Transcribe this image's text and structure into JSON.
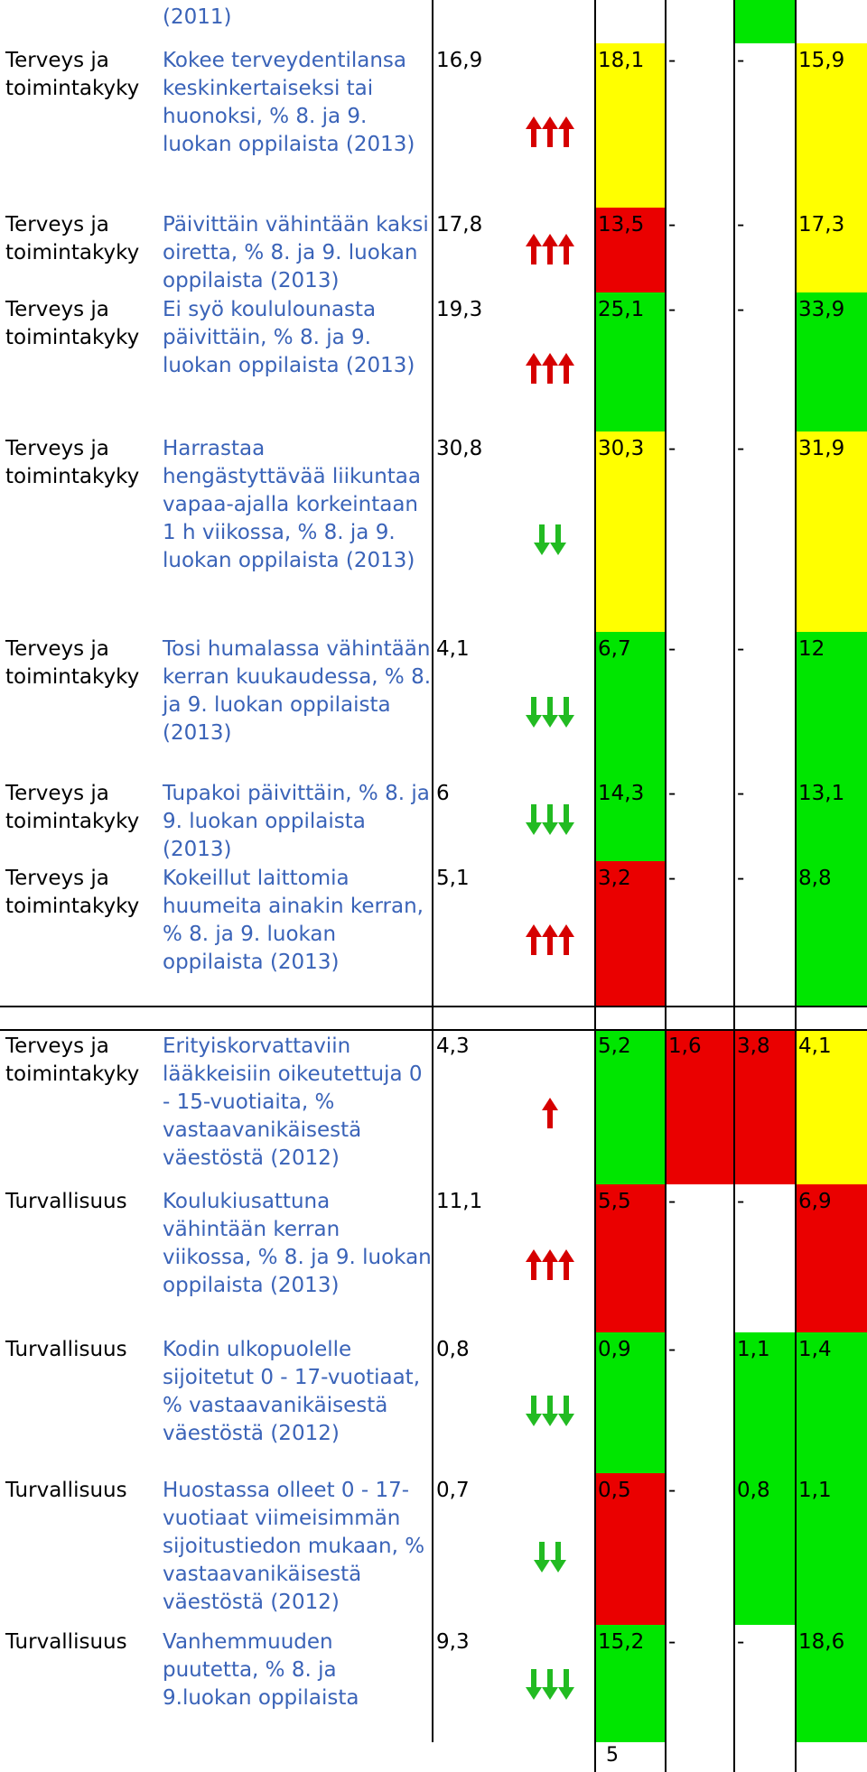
{
  "colors": {
    "red": "#ea0000",
    "yellow": "#ffff00",
    "green": "#00e600",
    "link": "#3a63b8",
    "arrow_up": "#d60000",
    "arrow_down": "#22bb22"
  },
  "top_fragment": {
    "desc": "(2011)"
  },
  "rows": [
    {
      "category": "Terveys ja toimintakyky",
      "description": "Kokee terveydentilansa keskinkertaiseksi tai huonoksi, % 8. ja 9. luokan oppilaista (2013)",
      "value": "16,9",
      "trend": "up3",
      "c1": "18,1",
      "c1_color": "yellow",
      "c2": "-",
      "c2_color": "white",
      "c3": "-",
      "c3_color": "white",
      "c4": "15,9",
      "c4_color": "yellow"
    },
    {
      "category": "Terveys ja toimintakyky",
      "description": "Päivittäin vähintään kaksi oiretta, % 8. ja 9. luokan oppilaista (2013)",
      "value": "17,8",
      "trend": "up3",
      "c1": "13,5",
      "c1_color": "red",
      "c2": "-",
      "c2_color": "white",
      "c3": "-",
      "c3_color": "white",
      "c4": "17,3",
      "c4_color": "yellow"
    },
    {
      "category": "Terveys ja toimintakyky",
      "description": "Ei syö koululounasta päivittäin, % 8. ja 9. luokan oppilaista (2013)",
      "value": "19,3",
      "trend": "up3",
      "c1": "25,1",
      "c1_color": "green",
      "c2": "-",
      "c2_color": "white",
      "c3": "-",
      "c3_color": "white",
      "c4": "33,9",
      "c4_color": "green"
    },
    {
      "category": "Terveys ja toimintakyky",
      "description": "Harrastaa hengästyttävää liikuntaa vapaa-ajalla korkeintaan 1 h viikossa, % 8. ja 9. luokan oppilaista (2013)",
      "value": "30,8",
      "trend": "down2",
      "c1": "30,3",
      "c1_color": "yellow",
      "c2": "-",
      "c2_color": "white",
      "c3": "-",
      "c3_color": "white",
      "c4": "31,9",
      "c4_color": "yellow"
    },
    {
      "category": "Terveys ja toimintakyky",
      "description": "Tosi humalassa vähintään kerran kuukaudessa, % 8. ja 9. luokan oppilaista (2013)",
      "value": "4,1",
      "trend": "down3",
      "c1": "6,7",
      "c1_color": "green",
      "c2": "-",
      "c2_color": "white",
      "c3": "-",
      "c3_color": "white",
      "c4": "12",
      "c4_color": "green"
    },
    {
      "category": "Terveys ja toimintakyky",
      "description": "Tupakoi päivittäin, % 8. ja 9. luokan oppilaista (2013)",
      "value": "6",
      "trend": "down3",
      "c1": "14,3",
      "c1_color": "green",
      "c2": "-",
      "c2_color": "white",
      "c3": "-",
      "c3_color": "white",
      "c4": "13,1",
      "c4_color": "green"
    },
    {
      "category": "Terveys ja toimintakyky",
      "description": "Kokeillut laittomia huumeita ainakin kerran, % 8. ja 9. luokan oppilaista (2013)",
      "value": "5,1",
      "trend": "up3",
      "c1": "3,2",
      "c1_color": "red",
      "c2": "-",
      "c2_color": "white",
      "c3": "-",
      "c3_color": "white",
      "c4": "8,8",
      "c4_color": "green"
    },
    {
      "category": "Terveys ja toimintakyky",
      "description": "Erityiskorvattaviin lääkkeisiin oikeutettuja 0 - 15-vuotiaita, % vastaavanikäisestä väestöstä (2012)",
      "value": "4,3",
      "trend": "up1",
      "c1": "5,2",
      "c1_color": "green",
      "c2": "1,6",
      "c2_color": "red",
      "c3": "3,8",
      "c3_color": "red",
      "c4": "4,1",
      "c4_color": "yellow"
    },
    {
      "category": "Turvallisuus",
      "description": "Koulukiusattuna vähintään kerran viikossa, % 8. ja 9. luokan oppilaista (2013)",
      "value": "11,1",
      "trend": "up3",
      "c1": "5,5",
      "c1_color": "red",
      "c2": "-",
      "c2_color": "white",
      "c3": "-",
      "c3_color": "white",
      "c4": "6,9",
      "c4_color": "red"
    },
    {
      "category": "Turvallisuus",
      "description": "Kodin ulkopuolelle sijoitetut 0 - 17-vuotiaat, % vastaavanikäisestä väestöstä (2012)",
      "value": "0,8",
      "trend": "down3",
      "c1": "0,9",
      "c1_color": "green",
      "c2": "-",
      "c2_color": "white",
      "c3": "1,1",
      "c3_color": "green",
      "c4": "1,4",
      "c4_color": "green"
    },
    {
      "category": "Turvallisuus",
      "description": "Huostassa olleet 0 - 17-vuotiaat viimeisimmän sijoitustiedon mukaan, % vastaavanikäisestä väestöstä (2012)",
      "value": "0,7",
      "trend": "down2",
      "c1": "0,5",
      "c1_color": "red",
      "c2": "-",
      "c2_color": "white",
      "c3": "0,8",
      "c3_color": "green",
      "c4": "1,1",
      "c4_color": "green"
    },
    {
      "category": "Turvallisuus",
      "description": "Vanhemmuuden puutetta, % 8. ja 9.luokan oppilaista",
      "value": "9,3",
      "trend": "down3",
      "c1": "15,2",
      "c1_color": "green",
      "c2": "-",
      "c2_color": "white",
      "c3": "-",
      "c3_color": "white",
      "c4": "18,6",
      "c4_color": "green"
    }
  ],
  "page_number": "5"
}
